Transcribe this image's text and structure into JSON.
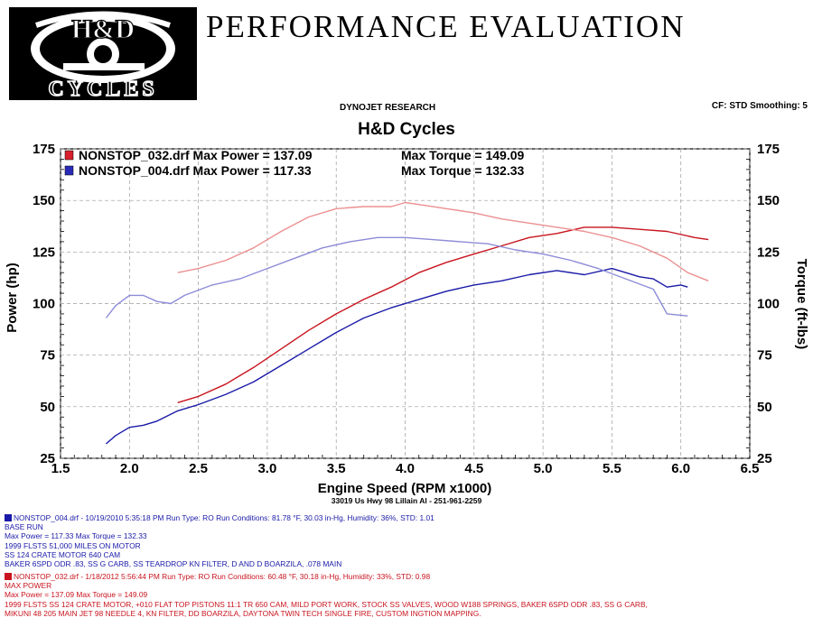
{
  "header": {
    "logo_top": "H&D",
    "logo_bottom": "CYCLES",
    "title": "PERFORMANCE EVALUATION",
    "source": "DYNOJET RESEARCH",
    "settings": "CF: STD  Smoothing: 5",
    "chart_title": "H&D Cycles"
  },
  "chart_data": {
    "type": "line",
    "title": "H&D Cycles",
    "xlabel": "Engine Speed (RPM x1000)",
    "ylabel_left": "Power (hp)",
    "ylabel_right": "Torque (ft-lbs)",
    "xlim": [
      1.5,
      6.5
    ],
    "ylim": [
      25,
      175
    ],
    "x_ticks": [
      "1.5",
      "2.0",
      "2.5",
      "3.0",
      "3.5",
      "4.0",
      "4.5",
      "5.0",
      "5.5",
      "6.0",
      "6.5"
    ],
    "y_ticks": [
      "25",
      "50",
      "75",
      "100",
      "125",
      "150",
      "175"
    ],
    "grid": true,
    "legend": [
      {
        "name": "NONSTOP_032.drf Max Power = 137.09",
        "torque": "Max Torque = 149.09",
        "color": "#d8202a"
      },
      {
        "name": "NONSTOP_004.drf Max Power = 117.33",
        "torque": "Max Torque = 132.33",
        "color": "#2a2ab8"
      }
    ],
    "series": [
      {
        "name": "NONSTOP_032.drf Max Power = 137.09",
        "measure": "power",
        "color": "#c8141e",
        "x": [
          2.35,
          2.5,
          2.7,
          2.9,
          3.1,
          3.3,
          3.5,
          3.7,
          3.9,
          4.1,
          4.3,
          4.5,
          4.7,
          4.9,
          5.1,
          5.3,
          5.5,
          5.7,
          5.9,
          6.1,
          6.2
        ],
        "y": [
          52,
          55,
          61,
          69,
          78,
          87,
          95,
          102,
          108,
          115,
          120,
          124,
          128,
          132,
          134,
          137,
          137,
          136,
          135,
          132,
          131
        ]
      },
      {
        "name": "NONSTOP_032.drf Max Torque = 149.09",
        "measure": "torque",
        "color": "#ec9090",
        "x": [
          2.35,
          2.5,
          2.7,
          2.9,
          3.1,
          3.3,
          3.5,
          3.7,
          3.9,
          4.0,
          4.1,
          4.3,
          4.5,
          4.7,
          4.9,
          5.1,
          5.3,
          5.5,
          5.7,
          5.9,
          6.05,
          6.2
        ],
        "y": [
          115,
          117,
          121,
          127,
          135,
          142,
          146,
          147,
          147,
          149,
          148,
          146,
          144,
          141,
          139,
          137,
          135,
          132,
          128,
          122,
          115,
          111
        ]
      },
      {
        "name": "NONSTOP_004.drf Max Power = 117.33",
        "measure": "power",
        "color": "#1a1aa8",
        "x": [
          1.83,
          1.9,
          2.0,
          2.1,
          2.2,
          2.35,
          2.5,
          2.7,
          2.9,
          3.1,
          3.3,
          3.5,
          3.7,
          3.9,
          4.1,
          4.3,
          4.5,
          4.7,
          4.9,
          5.1,
          5.3,
          5.5,
          5.7,
          5.8,
          5.9,
          6.0,
          6.05
        ],
        "y": [
          32,
          36,
          40,
          41,
          43,
          48,
          51,
          56,
          62,
          70,
          78,
          86,
          93,
          98,
          102,
          106,
          109,
          111,
          114,
          116,
          114,
          117,
          113,
          112,
          108,
          109,
          108
        ]
      },
      {
        "name": "NONSTOP_004.drf Max Torque = 132.33",
        "measure": "torque",
        "color": "#8c8cd8",
        "x": [
          1.83,
          1.9,
          2.0,
          2.1,
          2.2,
          2.3,
          2.4,
          2.6,
          2.8,
          3.0,
          3.2,
          3.4,
          3.6,
          3.8,
          4.0,
          4.2,
          4.4,
          4.6,
          4.8,
          5.0,
          5.2,
          5.4,
          5.6,
          5.8,
          5.9,
          6.05
        ],
        "y": [
          93,
          99,
          104,
          104,
          101,
          100,
          104,
          109,
          112,
          117,
          122,
          127,
          130,
          132,
          132,
          131,
          130,
          129,
          126,
          124,
          121,
          117,
          112,
          107,
          95,
          94
        ]
      }
    ]
  },
  "footer": {
    "address": "33019 Us Hwy 98 Lillain Al - 251-961-2259",
    "runs": [
      {
        "color": "#1a1aa8",
        "lines": [
          "NONSTOP_004.drf - 10/19/2010 5:35:18 PM  Run Type: RO  Run Conditions: 81.78 °F, 30.03 in-Hg,  Humidity:  36%, STD: 1.01",
          "BASE RUN",
          "Max Power = 117.33  Max Torque = 132.33",
          "1999 FLSTS 51,000 MILES ON MOTOR",
          "SS 124 CRATE MOTOR 640 CAM",
          "BAKER 6SPD ODR .83, SS G CARB,  SS TEARDROP KN FILTER, D AND D BOARZILA,  .078 MAIN"
        ]
      },
      {
        "color": "#c8141e",
        "lines": [
          "NONSTOP_032.drf - 1/18/2012 5:56:44 PM  Run Type: RO  Run Conditions: 60.48 °F, 30.18 in-Hg,  Humidity:  33%, STD: 0.98",
          "MAX POWER",
          "Max Power = 137.09  Max Torque = 149.09",
          "1999 FLSTS SS 124 CRATE MOTOR,  +010  FLAT TOP PISTONS  11:1 TR 650 CAM, MILD PORT WORK, STOCK SS VALVES, WOOD  W188 SPRINGS, BAKER 6SPD ODR .83, SS G CARB,",
          "MIKUNI 48 205 MAIN JET 98 NEEDLE 4,  KN FILTER, DD BOARZILA,  DAYTONA TWIN TECH SINGLE FIRE, CUSTOM INGTION MAPPING."
        ]
      }
    ]
  }
}
